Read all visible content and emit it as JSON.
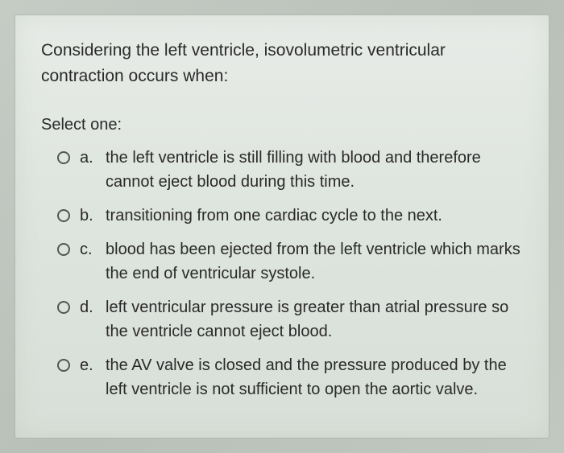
{
  "question": {
    "text": "Considering the left ventricle, isovolumetric ventricular contraction occurs when:",
    "select_label": "Select one:",
    "options": [
      {
        "letter": "a.",
        "text": "the left ventricle is still filling with blood and therefore cannot eject blood during this time."
      },
      {
        "letter": "b.",
        "text": "transitioning from one cardiac cycle to the next."
      },
      {
        "letter": "c.",
        "text": "blood has been ejected from the left ventricle which marks the end of ventricular systole."
      },
      {
        "letter": "d.",
        "text": "left ventricular pressure is greater than atrial pressure so the ventricle cannot eject blood."
      },
      {
        "letter": "e.",
        "text": "the AV valve is closed and the pressure produced by the left ventricle is not sufficient to open the aortic valve."
      }
    ]
  },
  "colors": {
    "text": "#2a2a2a",
    "radio_border": "#555555",
    "card_bg_top": "#e8ece8",
    "card_bg_bottom": "#d8dfd8",
    "body_bg": "#c0c8c0"
  },
  "typography": {
    "font_family": "Arial",
    "question_fontsize": 21,
    "option_fontsize": 20
  }
}
